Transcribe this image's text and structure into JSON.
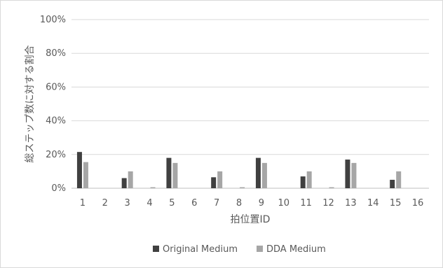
{
  "chart_data": {
    "type": "bar",
    "title": "",
    "xlabel": "拍位置ID",
    "ylabel": "総ステップ数に対する割合",
    "categories": [
      "1",
      "2",
      "3",
      "4",
      "5",
      "6",
      "7",
      "8",
      "9",
      "10",
      "11",
      "12",
      "13",
      "14",
      "15",
      "16"
    ],
    "ylim": [
      0,
      100
    ],
    "yticks": [
      "0%",
      "20%",
      "40%",
      "60%",
      "80%",
      "100%"
    ],
    "grid": true,
    "legend_position": "bottom",
    "series": [
      {
        "name": "Original Medium",
        "color": "#404040",
        "values": [
          21.5,
          0,
          6,
          0,
          18,
          0,
          6.5,
          0,
          18,
          0,
          7,
          0,
          17,
          0,
          5,
          0
        ]
      },
      {
        "name": "DDA Medium",
        "color": "#a6a6a6",
        "values": [
          15.5,
          0,
          10,
          0.6,
          15,
          0,
          10,
          0.6,
          15,
          0,
          10,
          0.6,
          15,
          0,
          10,
          0
        ]
      }
    ]
  }
}
